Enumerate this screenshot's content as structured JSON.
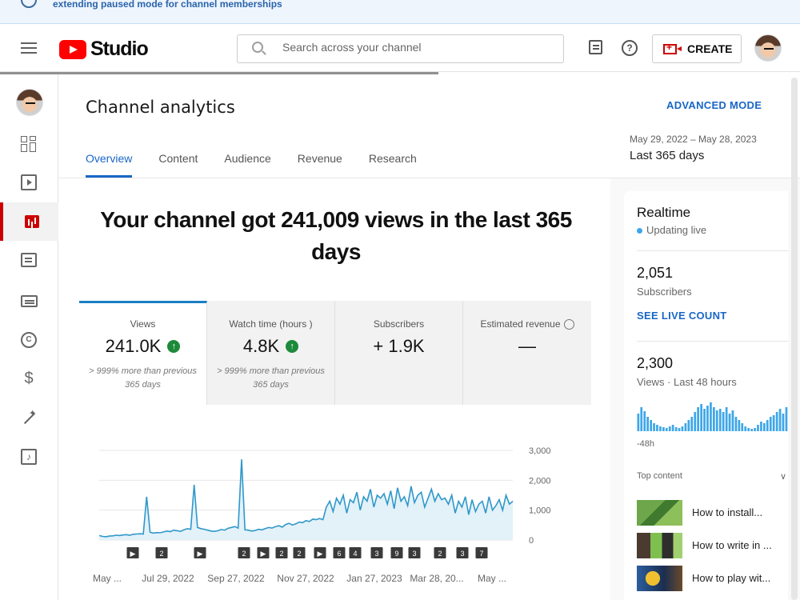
{
  "banner": {
    "text": "extending paused mode for channel memberships"
  },
  "topbar": {
    "logo_text": "Studio",
    "search_placeholder": "Search across your channel",
    "create_label": "CREATE"
  },
  "header": {
    "title": "Channel analytics",
    "advanced_mode": "ADVANCED MODE",
    "tabs": [
      "Overview",
      "Content",
      "Audience",
      "Revenue",
      "Research"
    ],
    "date_range": "May 29, 2022 – May 28, 2023",
    "date_label": "Last 365 days"
  },
  "main": {
    "headline": "Your channel got 241,009 views in the last 365 days",
    "cards": [
      {
        "label": "Views",
        "value": "241.0K",
        "note": "> 999% more than previous 365 days"
      },
      {
        "label": "Watch time (hours )",
        "value": "4.8K",
        "note": "> 999% more than previous 365 days"
      },
      {
        "label": "Subscribers",
        "value": "+ 1.9K",
        "note": ""
      },
      {
        "label": "Estimated revenue",
        "value": "—",
        "note": ""
      }
    ]
  },
  "chart_data": {
    "type": "area",
    "ylim": [
      0,
      3000
    ],
    "y_ticks": [
      "3,000",
      "2,000",
      "1,000",
      "0"
    ],
    "x_tick_labels": [
      "May ...",
      "Jul 29, 2022",
      "Sep 27, 2022",
      "Nov 27, 2022",
      "Jan 27, 2023",
      "Mar 28, 20...",
      "May ..."
    ],
    "markers": [
      "▶",
      "2",
      "▶",
      "2",
      "▶",
      "2",
      "2",
      "▶",
      "6",
      "4",
      "3",
      "9",
      "3",
      "2",
      "3",
      "7"
    ],
    "series": [
      {
        "values": [
          150,
          120,
          110,
          130,
          140,
          160,
          150,
          170,
          180,
          160,
          190,
          200,
          210,
          200,
          1450,
          260,
          230,
          250,
          240,
          270,
          300,
          280,
          330,
          310,
          290,
          340,
          380,
          360,
          1850,
          420,
          380,
          360,
          330,
          300,
          290,
          310,
          350,
          330,
          390,
          420,
          450,
          400,
          2700,
          340,
          330,
          300,
          320,
          360,
          340,
          380,
          420,
          400,
          450,
          480,
          430,
          520,
          560,
          500,
          540,
          600,
          580,
          650,
          620,
          700,
          680,
          720,
          680,
          1100,
          1300,
          950,
          1400,
          1200,
          1500,
          900,
          1350,
          1250,
          1600,
          1000,
          1450,
          1300,
          1700,
          1100,
          1500,
          1400,
          1550,
          1200,
          1650,
          1050,
          1750,
          1300,
          1450,
          1150,
          1800,
          1250,
          1500,
          1600,
          1100,
          1400,
          1700,
          1300,
          1550,
          1350,
          1400,
          1200,
          1500,
          900,
          1300,
          1100,
          1450,
          850,
          1350,
          950,
          1200,
          1300,
          900,
          1450,
          1000,
          1150,
          1350,
          1000,
          1500,
          1200,
          1300
        ]
      }
    ]
  },
  "realtime": {
    "title": "Realtime",
    "updating": "Updating live",
    "subscribers_value": "2,051",
    "subscribers_label": "Subscribers",
    "see_live": "SEE LIVE COUNT",
    "views_value": "2,300",
    "views_label": "Views · Last 48 hours",
    "axis_label": "-48h",
    "top_content_label": "Top content",
    "top_content_icon": "chevron-down-icon",
    "top_items": [
      "How to install...",
      "How to write in ...",
      "How to play wit..."
    ],
    "mini_bars": [
      22,
      30,
      25,
      18,
      14,
      10,
      8,
      6,
      5,
      4,
      6,
      8,
      5,
      4,
      6,
      10,
      14,
      18,
      24,
      30,
      34,
      28,
      32,
      36,
      30,
      26,
      28,
      24,
      30,
      22,
      26,
      18,
      14,
      10,
      6,
      4,
      3,
      4,
      8,
      12,
      10,
      14,
      18,
      20,
      24,
      28,
      22,
      30
    ]
  }
}
